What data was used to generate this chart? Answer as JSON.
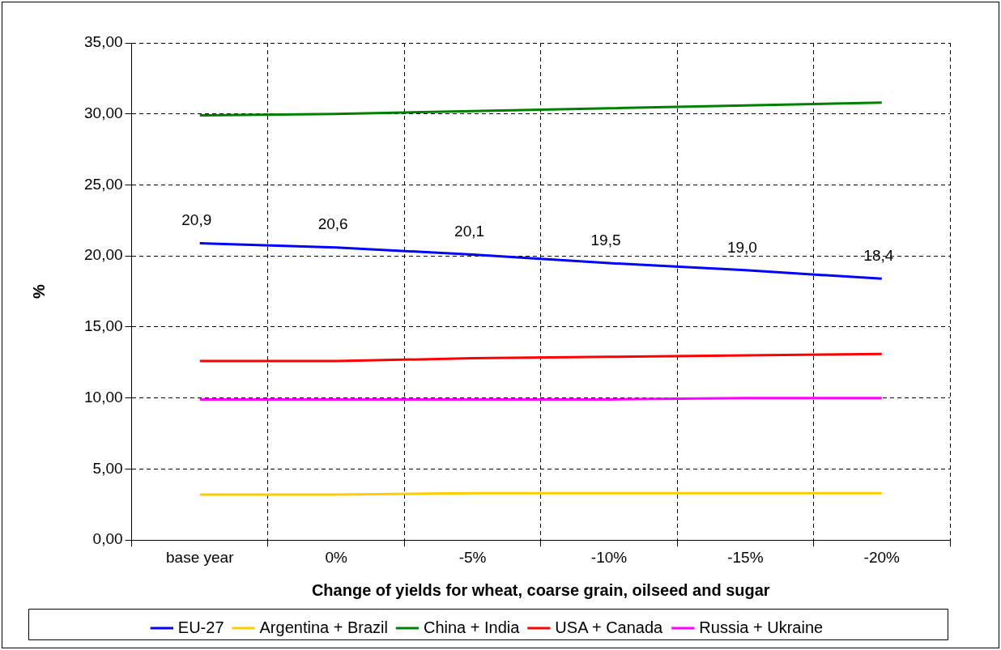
{
  "chart_data": {
    "type": "line",
    "xlabel": "Change of yields for wheat, coarse grain, oilseed and sugar",
    "ylabel": "%",
    "categories": [
      "base year",
      "0%",
      "-5%",
      "-10%",
      "-15%",
      "-20%"
    ],
    "series": [
      {
        "name": "EU-27",
        "color": "#0000ff",
        "values": [
          20.9,
          20.6,
          20.1,
          19.5,
          19.0,
          18.4
        ],
        "value_labels": [
          "20,9",
          "20,6",
          "20,1",
          "19,5",
          "19,0",
          "18,4"
        ]
      },
      {
        "name": "Argentina + Brazil",
        "color": "#ffcc00",
        "values": [
          3.2,
          3.2,
          3.3,
          3.3,
          3.3,
          3.3
        ]
      },
      {
        "name": "China + India",
        "color": "#008000",
        "values": [
          29.9,
          30.0,
          30.2,
          30.4,
          30.6,
          30.8
        ]
      },
      {
        "name": "USA + Canada",
        "color": "#ff0000",
        "values": [
          12.6,
          12.6,
          12.8,
          12.9,
          13.0,
          13.1
        ]
      },
      {
        "name": "Russia + Ukraine",
        "color": "#ff00ff",
        "values": [
          9.9,
          9.9,
          9.9,
          9.9,
          10.0,
          10.0
        ]
      }
    ],
    "ylim": [
      0,
      35
    ],
    "yticks": [
      {
        "value": 0,
        "label": "0,00"
      },
      {
        "value": 5,
        "label": "5,00"
      },
      {
        "value": 10,
        "label": "10,00"
      },
      {
        "value": 15,
        "label": "15,00"
      },
      {
        "value": 20,
        "label": "20,00"
      },
      {
        "value": 25,
        "label": "25,00"
      },
      {
        "value": 30,
        "label": "30,00"
      },
      {
        "value": 35,
        "label": "35,00"
      }
    ],
    "grid": true,
    "legend": "bottom",
    "marker": "none",
    "line_style": "solid"
  }
}
